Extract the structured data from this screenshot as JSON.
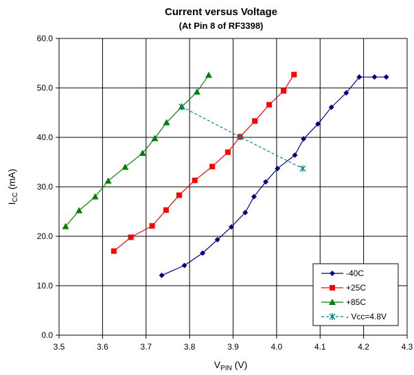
{
  "chart_data": {
    "type": "line",
    "title": "Current versus Voltage",
    "subtitle": "(At Pin 8 of RF3398)",
    "xlabel": {
      "main": "V",
      "sub": "PIN",
      "suffix": " (V)"
    },
    "ylabel": {
      "main": "I",
      "sub": "CC",
      "suffix": " (mA)"
    },
    "xlim": [
      3.5,
      4.3
    ],
    "ylim": [
      0,
      60
    ],
    "xticks": [
      "3.5",
      "3.6",
      "3.7",
      "3.8",
      "3.9",
      "4.0",
      "4.1",
      "4.2",
      "4.3"
    ],
    "yticks": [
      "0.0",
      "10.0",
      "20.0",
      "30.0",
      "40.0",
      "50.0",
      "60.0"
    ],
    "grid": true,
    "legend_position": "bottom-right",
    "series": [
      {
        "name": "-40C",
        "color": "#000080",
        "marker": "diamond",
        "dash": "solid",
        "x": [
          3.736,
          3.788,
          3.83,
          3.864,
          3.896,
          3.928,
          3.948,
          3.975,
          4.002,
          4.042,
          4.062,
          4.095,
          4.126,
          4.16,
          4.19,
          4.225,
          4.252
        ],
        "y": [
          12.1,
          14.1,
          16.6,
          19.3,
          21.9,
          24.8,
          28.0,
          31.0,
          33.7,
          36.4,
          39.7,
          42.7,
          46.1,
          49.0,
          52.2,
          52.2,
          52.2
        ]
      },
      {
        "name": "+25C",
        "color": "#ff0000",
        "marker": "square",
        "dash": "solid",
        "x": [
          3.626,
          3.665,
          3.714,
          3.746,
          3.776,
          3.812,
          3.852,
          3.888,
          3.916,
          3.95,
          3.983,
          4.016,
          4.04
        ],
        "y": [
          17.0,
          19.8,
          22.1,
          25.3,
          28.3,
          31.3,
          34.1,
          37.0,
          40.1,
          43.3,
          46.6,
          49.4,
          52.7
        ]
      },
      {
        "name": "+85C",
        "color": "#008000",
        "marker": "triangle",
        "dash": "solid",
        "x": [
          3.515,
          3.546,
          3.583,
          3.613,
          3.652,
          3.692,
          3.72,
          3.747,
          3.782,
          3.817,
          3.844
        ],
        "y": [
          22.0,
          25.2,
          28.0,
          31.2,
          34.0,
          36.8,
          39.8,
          43.0,
          46.2,
          49.2,
          52.6
        ]
      },
      {
        "name": "- Vcc=4.8V",
        "color": "#008080",
        "marker": "asterisk",
        "dash": "dashed",
        "x": [
          3.782,
          3.916,
          4.06
        ],
        "y": [
          46.2,
          40.1,
          33.7
        ]
      }
    ]
  }
}
